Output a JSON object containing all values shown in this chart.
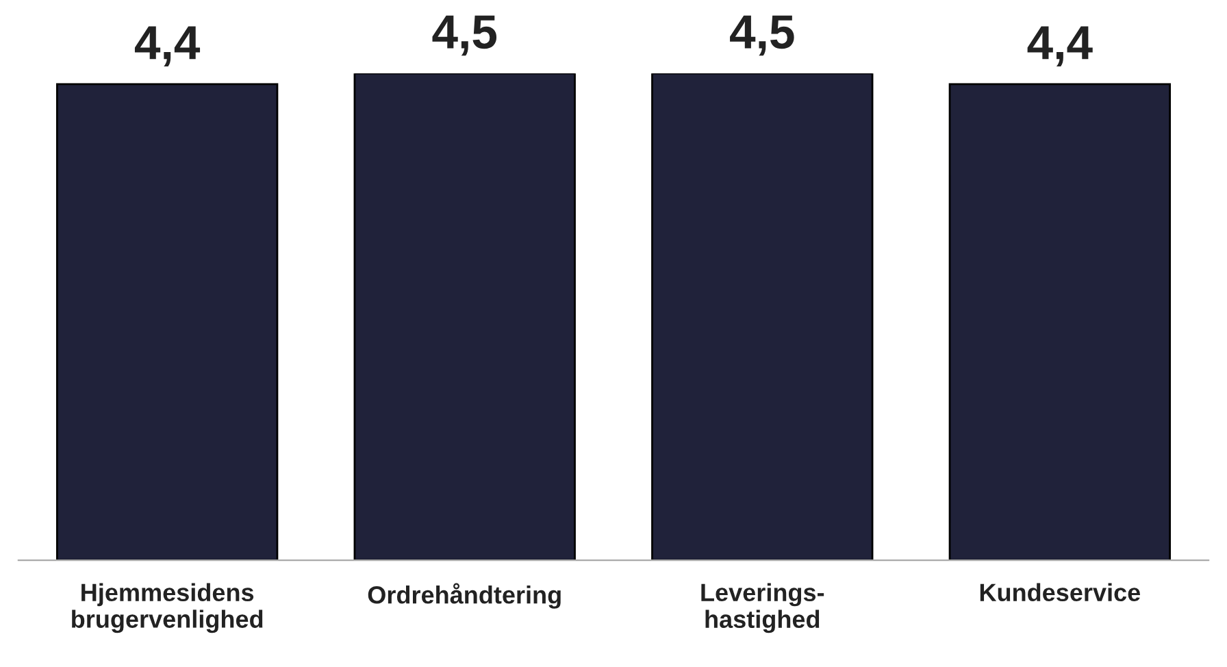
{
  "chart_data": {
    "type": "bar",
    "categories": [
      "Hjemmesidens\nbrugervenlighed",
      "Ordrehåndtering",
      "Leverings-\nhastighed",
      "Kundeservice"
    ],
    "values": [
      4.4,
      4.5,
      4.5,
      4.4
    ],
    "value_labels": [
      "4,4",
      "4,5",
      "4,5",
      "4,4"
    ],
    "color": "#20223a",
    "grid": false,
    "legend": false
  }
}
